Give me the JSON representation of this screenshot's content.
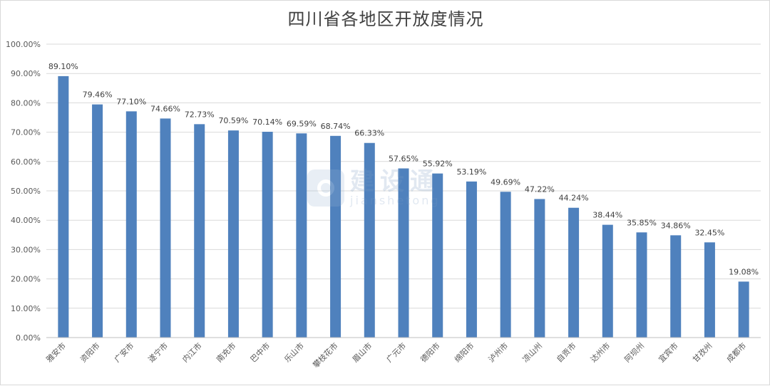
{
  "chart_data": {
    "type": "bar",
    "title": "四川省各地区开放度情况",
    "xlabel": "",
    "ylabel": "",
    "ylim": [
      0,
      100
    ],
    "yticks": [
      0,
      10,
      20,
      30,
      40,
      50,
      60,
      70,
      80,
      90,
      100
    ],
    "ytick_labels": [
      "0.00%",
      "10.00%",
      "20.00%",
      "30.00%",
      "40.00%",
      "50.00%",
      "60.00%",
      "70.00%",
      "80.00%",
      "90.00%",
      "100.00%"
    ],
    "grid": true,
    "bar_color": "#4f81bd",
    "categories": [
      "雅安市",
      "资阳市",
      "广安市",
      "遂宁市",
      "内江市",
      "南充市",
      "巴中市",
      "乐山市",
      "攀枝花市",
      "眉山市",
      "广元市",
      "德阳市",
      "绵阳市",
      "泸州市",
      "凉山州",
      "自贡市",
      "达州市",
      "阿坝州",
      "宜宾市",
      "甘孜州",
      "成都市"
    ],
    "values": [
      89.1,
      79.46,
      77.1,
      74.66,
      72.73,
      70.59,
      70.14,
      69.59,
      68.74,
      66.33,
      57.65,
      55.92,
      53.19,
      49.69,
      47.22,
      44.24,
      38.44,
      35.85,
      34.86,
      32.45,
      19.08
    ],
    "data_labels": [
      "89.10%",
      "79.46%",
      "77.10%",
      "74.66%",
      "72.73%",
      "70.59%",
      "70.14%",
      "69.59%",
      "68.74%",
      "66.33%",
      "57.65%",
      "55.92%",
      "53.19%",
      "49.69%",
      "47.22%",
      "44.24%",
      "38.44%",
      "35.85%",
      "34.86%",
      "32.45%",
      "19.08%"
    ]
  },
  "watermark": {
    "text_cn": "建设通",
    "text_en": "jianshetong",
    "icon": "watermark-logo-icon"
  }
}
